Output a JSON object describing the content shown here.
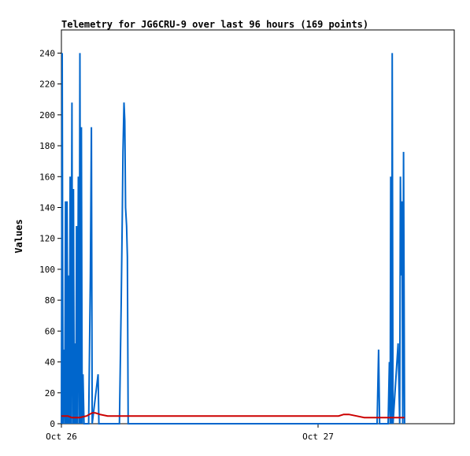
{
  "chart_data": {
    "type": "line",
    "title": "Telemetry for JG6CRU-9 over last 96 hours (169 points)",
    "xlabel": "",
    "ylabel": "Values",
    "ylim": [
      0,
      255
    ],
    "yticks": [
      0,
      20,
      40,
      60,
      80,
      100,
      120,
      140,
      160,
      180,
      200,
      220,
      240
    ],
    "xlim": [
      0,
      1.54
    ],
    "xticks": [
      {
        "x": 0,
        "label": "Oct 26"
      },
      {
        "x": 1,
        "label": "Oct 27"
      }
    ],
    "grid": false,
    "legend": "none",
    "series": [
      {
        "color": "#0066cc",
        "points": [
          [
            0.0,
            0
          ],
          [
            0.003,
            240
          ],
          [
            0.006,
            0
          ],
          [
            0.01,
            48
          ],
          [
            0.013,
            0
          ],
          [
            0.016,
            144
          ],
          [
            0.019,
            0
          ],
          [
            0.022,
            144
          ],
          [
            0.025,
            0
          ],
          [
            0.028,
            96
          ],
          [
            0.031,
            0
          ],
          [
            0.034,
            160
          ],
          [
            0.037,
            0
          ],
          [
            0.041,
            208
          ],
          [
            0.044,
            0
          ],
          [
            0.047,
            152
          ],
          [
            0.05,
            0
          ],
          [
            0.053,
            52
          ],
          [
            0.056,
            0
          ],
          [
            0.059,
            128
          ],
          [
            0.062,
            0
          ],
          [
            0.066,
            160
          ],
          [
            0.069,
            0
          ],
          [
            0.072,
            240
          ],
          [
            0.075,
            0
          ],
          [
            0.078,
            192
          ],
          [
            0.081,
            0
          ],
          [
            0.084,
            32
          ],
          [
            0.088,
            0
          ],
          [
            0.106,
            0
          ],
          [
            0.113,
            96
          ],
          [
            0.117,
            192
          ],
          [
            0.12,
            0
          ],
          [
            0.143,
            32
          ],
          [
            0.146,
            0
          ],
          [
            0.226,
            0
          ],
          [
            0.233,
            80
          ],
          [
            0.237,
            133
          ],
          [
            0.24,
            176
          ],
          [
            0.244,
            208
          ],
          [
            0.247,
            196
          ],
          [
            0.25,
            140
          ],
          [
            0.254,
            128
          ],
          [
            0.257,
            108
          ],
          [
            0.26,
            0
          ],
          [
            1.23,
            0
          ],
          [
            1.236,
            48
          ],
          [
            1.24,
            0
          ],
          [
            1.273,
            0
          ],
          [
            1.278,
            40
          ],
          [
            1.281,
            0
          ],
          [
            1.283,
            160
          ],
          [
            1.287,
            0
          ],
          [
            1.289,
            240
          ],
          [
            1.292,
            0
          ],
          [
            1.312,
            52
          ],
          [
            1.318,
            0
          ],
          [
            1.321,
            160
          ],
          [
            1.324,
            96
          ],
          [
            1.327,
            144
          ],
          [
            1.33,
            0
          ],
          [
            1.333,
            176
          ],
          [
            1.337,
            0
          ]
        ]
      },
      {
        "color": "#cc0000",
        "points": [
          [
            0.0,
            5
          ],
          [
            0.012,
            5
          ],
          [
            0.025,
            5
          ],
          [
            0.04,
            4
          ],
          [
            0.07,
            4
          ],
          [
            0.098,
            5
          ],
          [
            0.12,
            7
          ],
          [
            0.132,
            7
          ],
          [
            0.15,
            6
          ],
          [
            0.18,
            5
          ],
          [
            0.25,
            5
          ],
          [
            0.5,
            5
          ],
          [
            0.8,
            5
          ],
          [
            1.08,
            5
          ],
          [
            1.1,
            6
          ],
          [
            1.12,
            6
          ],
          [
            1.15,
            5
          ],
          [
            1.18,
            4
          ],
          [
            1.25,
            4
          ],
          [
            1.337,
            4
          ]
        ]
      }
    ]
  }
}
